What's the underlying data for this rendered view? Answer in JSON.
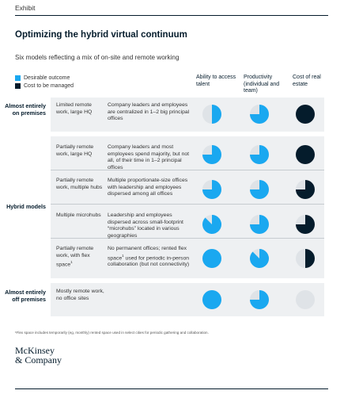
{
  "exhibit": "Exhibit",
  "title": "Optimizing the hybrid virtual continuum",
  "subtitle": "Six models reflecting a mix of on-site and remote working",
  "legend": {
    "desirable": "Desirable outcome",
    "cost": "Cost to be managed",
    "desirable_color": "#1aa8f0",
    "cost_color": "#051c2c"
  },
  "columns": {
    "talent": "Ability to access talent",
    "productivity": "Productivity (individual and team)",
    "cost": "Cost of real estate"
  },
  "groups": {
    "on_premises": "Almost entirely on premises",
    "hybrid": "Hybrid models",
    "off_premises": "Almost entirely off premises"
  },
  "rows": [
    {
      "model": "Limited remote work, large HQ",
      "desc": "Company leaders and employees are centralized in 1–2 big principal offices",
      "talent": 0.5,
      "productivity": 0.75,
      "cost": "full-dark"
    },
    {
      "model": "Partially remote work, large HQ",
      "desc": "Company leaders and most employees spend majority, but not all, of their time in 1–2 principal offices",
      "talent": 0.75,
      "productivity": 0.75,
      "cost": "full-dark"
    },
    {
      "model": "Partially remote work, multiple hubs",
      "desc": "Multiple proportionate-size offices with leadership and employees dispersed among all offices",
      "talent": 0.75,
      "productivity": 0.75,
      "cost": "three-quarter-dark"
    },
    {
      "model": "Multiple microhubs",
      "desc": "Leadership and employees dispersed across small-footprint “microhubs” located in various geographies",
      "talent": 0.875,
      "productivity": 0.75,
      "cost": "three-quarter-dark"
    },
    {
      "model": "Partially remote work, with flex space",
      "model_sup": "1",
      "desc_a": "No permanent offices; rented flex space",
      "desc_sup": "1",
      "desc_b": " used for periodic in-person collaboration (but not connectivity)",
      "talent": 1,
      "productivity": 0.875,
      "cost": "half-dark"
    },
    {
      "model": "Mostly remote work, no office sites",
      "desc": "",
      "talent": 1,
      "productivity": 0.75,
      "cost": "empty"
    }
  ],
  "footnote": "¹Flex space includes temporarily (eg, monthly) rented space used in select cities for periodic gathering and collaboration.",
  "logo": {
    "line1": "McKinsey",
    "line2": "& Company"
  }
}
